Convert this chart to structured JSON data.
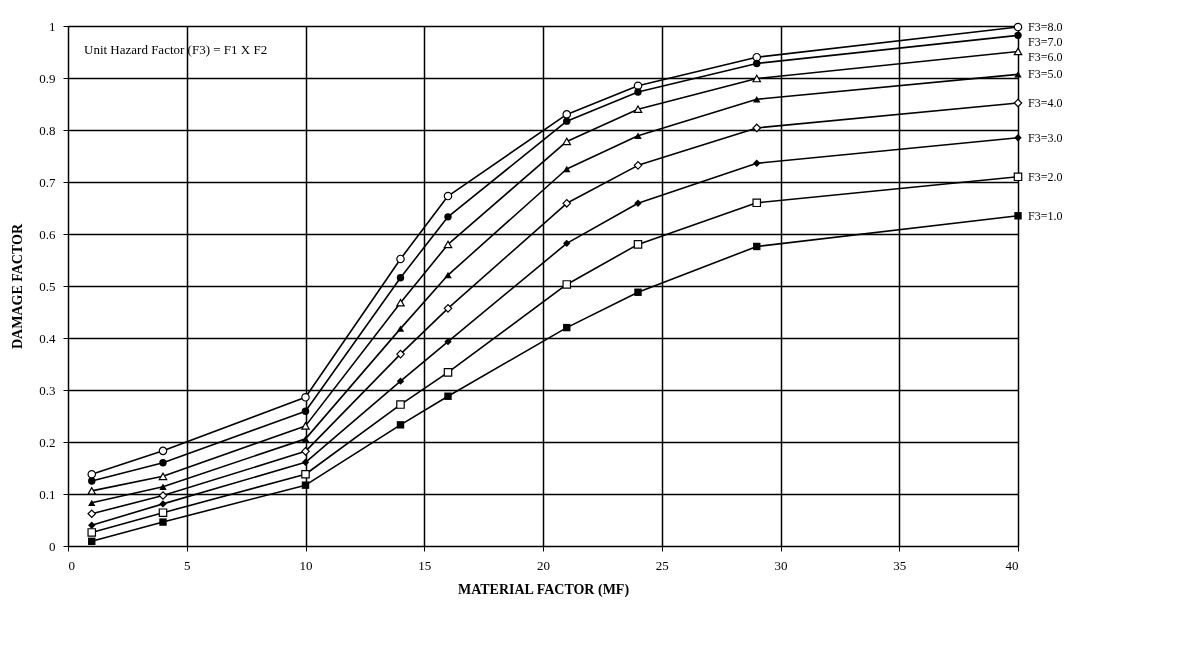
{
  "chart_data": {
    "type": "line",
    "xlabel": "MATERIAL FACTOR (MF)",
    "ylabel": "DAMAGE FACTOR",
    "annotations": [
      "Unit Hazard Factor (F3) = F1 X F2"
    ],
    "x": [
      1,
      4,
      10,
      14,
      16,
      21,
      24,
      29,
      40
    ],
    "series": [
      {
        "name": "F3=8.0",
        "color": "#000000",
        "marker": "circle",
        "values": [
          0.138,
          0.183,
          0.286,
          0.552,
          0.673,
          0.83,
          0.885,
          0.94,
          0.998
        ]
      },
      {
        "name": "F3=7.0",
        "color": "#000000",
        "marker": "circle",
        "values": [
          0.125,
          0.16,
          0.259,
          0.516,
          0.633,
          0.817,
          0.873,
          0.928,
          0.982
        ]
      },
      {
        "name": "F3=6.0",
        "color": "#000000",
        "marker": "triangle",
        "values": [
          0.106,
          0.134,
          0.231,
          0.468,
          0.58,
          0.778,
          0.84,
          0.899,
          0.951
        ]
      },
      {
        "name": "F3=5.0",
        "color": "#000000",
        "marker": "triangle",
        "values": [
          0.083,
          0.114,
          0.206,
          0.418,
          0.521,
          0.725,
          0.789,
          0.859,
          0.907
        ]
      },
      {
        "name": "F3=4.0",
        "color": "#000000",
        "marker": "diamond",
        "values": [
          0.062,
          0.097,
          0.182,
          0.369,
          0.457,
          0.659,
          0.732,
          0.804,
          0.852
        ]
      },
      {
        "name": "F3=3.0",
        "color": "#000000",
        "marker": "diamond",
        "values": [
          0.04,
          0.081,
          0.161,
          0.317,
          0.393,
          0.582,
          0.659,
          0.736,
          0.785
        ]
      },
      {
        "name": "F3=2.0",
        "color": "#000000",
        "marker": "square",
        "values": [
          0.026,
          0.064,
          0.138,
          0.272,
          0.334,
          0.503,
          0.58,
          0.66,
          0.71
        ]
      },
      {
        "name": "F3=1.0",
        "color": "#000000",
        "marker": "square",
        "values": [
          0.009,
          0.046,
          0.117,
          0.233,
          0.288,
          0.42,
          0.488,
          0.576,
          0.635
        ]
      }
    ],
    "xlim": [
      0,
      40
    ],
    "ylim": [
      0,
      1
    ],
    "xticks": [
      0,
      5,
      10,
      15,
      20,
      25,
      30,
      35,
      40
    ],
    "yticks": [
      0,
      0.1,
      0.2,
      0.3,
      0.4,
      0.5,
      0.6,
      0.7,
      0.8,
      0.9,
      1
    ],
    "grid": true,
    "legend": false,
    "line_style": "solid"
  }
}
